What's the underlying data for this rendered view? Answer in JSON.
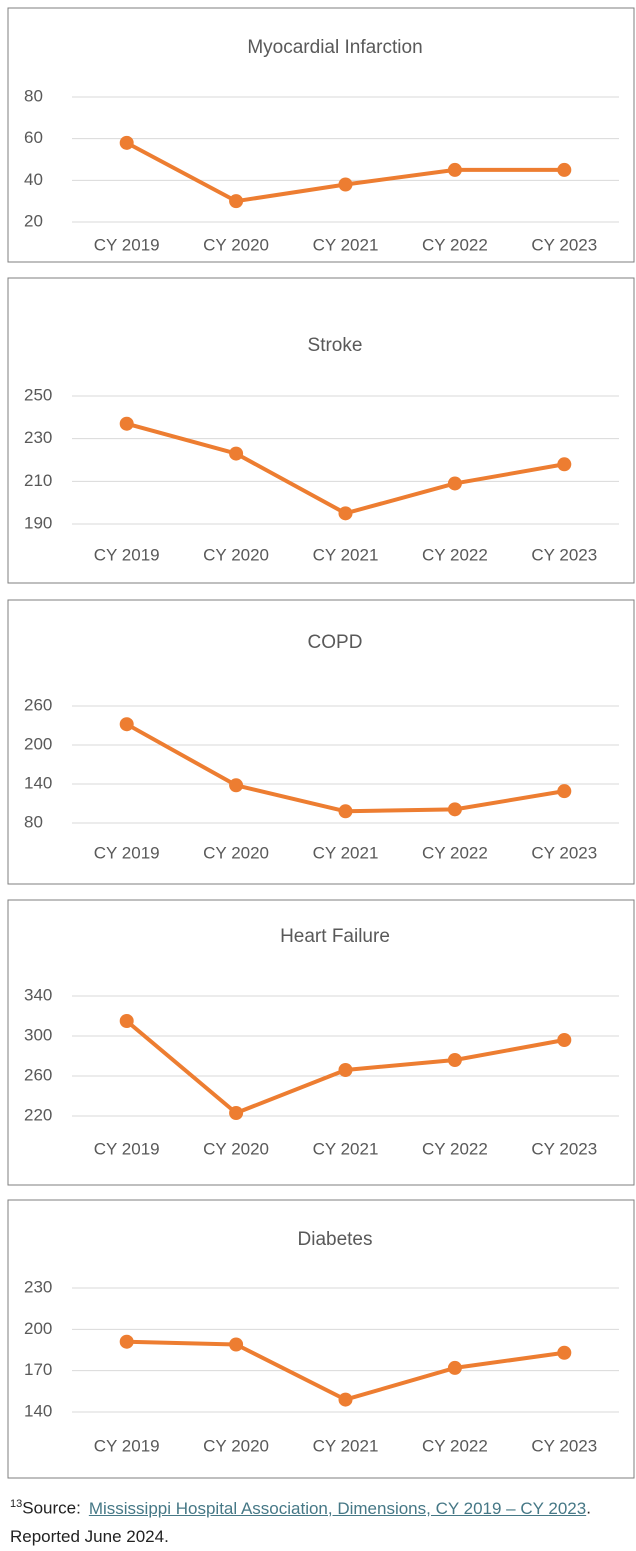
{
  "chart_data": [
    {
      "type": "line",
      "title": "Myocardial Infarction",
      "categories": [
        "CY 2019",
        "CY 2020",
        "CY 2021",
        "CY 2022",
        "CY 2023"
      ],
      "series": [
        {
          "color": "#ed7d31",
          "values": [
            58,
            30,
            38,
            45,
            45
          ]
        }
      ],
      "ylim": [
        20,
        80
      ],
      "yticks": [
        20,
        40,
        60,
        80
      ],
      "grid": true
    },
    {
      "type": "line",
      "title": "Stroke",
      "categories": [
        "CY 2019",
        "CY 2020",
        "CY 2021",
        "CY 2022",
        "CY 2023"
      ],
      "series": [
        {
          "color": "#ed7d31",
          "values": [
            237,
            223,
            195,
            209,
            218
          ]
        }
      ],
      "ylim": [
        190,
        250
      ],
      "yticks": [
        190,
        210,
        230,
        250
      ],
      "grid": true
    },
    {
      "type": "line",
      "title": "COPD",
      "categories": [
        "CY 2019",
        "CY 2020",
        "CY 2021",
        "CY 2022",
        "CY 2023"
      ],
      "series": [
        {
          "color": "#ed7d31",
          "values": [
            232,
            138,
            98,
            101,
            129
          ]
        }
      ],
      "ylim": [
        80,
        260
      ],
      "yticks": [
        80,
        140,
        200,
        260
      ],
      "grid": true
    },
    {
      "type": "line",
      "title": "Heart Failure",
      "categories": [
        "CY 2019",
        "CY 2020",
        "CY 2021",
        "CY 2022",
        "CY 2023"
      ],
      "series": [
        {
          "color": "#ed7d31",
          "values": [
            315,
            223,
            266,
            276,
            296
          ]
        }
      ],
      "ylim": [
        220,
        340
      ],
      "yticks": [
        220,
        260,
        300,
        340
      ],
      "grid": true
    },
    {
      "type": "line",
      "title": "Diabetes",
      "categories": [
        "CY 2019",
        "CY 2020",
        "CY 2021",
        "CY 2022",
        "CY 2023"
      ],
      "series": [
        {
          "color": "#ed7d31",
          "values": [
            191,
            189,
            149,
            172,
            183
          ]
        }
      ],
      "ylim": [
        140,
        230
      ],
      "yticks": [
        140,
        170,
        200,
        230
      ],
      "grid": true
    }
  ],
  "footnote": {
    "marker": "13",
    "prefix": "Source:",
    "link": "Mississippi Hospital Association, Dimensions, CY 2019 – CY 2023",
    "suffix": ". Reported June 2024."
  }
}
